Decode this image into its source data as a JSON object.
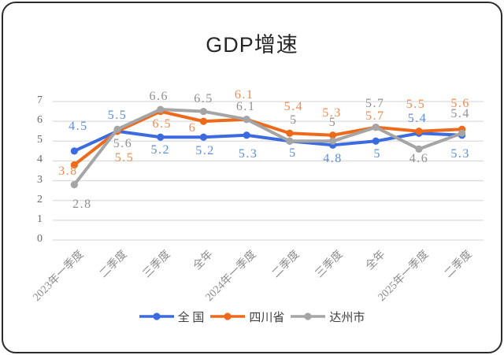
{
  "title": "GDP增速",
  "colors": {
    "national_line": "#3c6be0",
    "national_label": "#5c8fd8",
    "sichuan_line": "#ee6a1b",
    "sichuan_label": "#f08b52",
    "dazhou_line": "#a5a5a5",
    "dazhou_label": "#909090",
    "gridline": "#dcdcdc",
    "y_axis_text": "#6b6b6b",
    "x_axis_text": "#8c8c8c",
    "title_text": "#262626",
    "legend_text": "#3f3f3f",
    "frame_border": "#2b2b2b"
  },
  "chart_data": {
    "type": "line",
    "title": "GDP增速",
    "xlabel": "",
    "ylabel": "",
    "ylim": [
      0,
      7
    ],
    "ytick_step": 1,
    "grid": true,
    "legend_position": "bottom",
    "categories": [
      "2023年一季度",
      "二季度",
      "三季度",
      "全年",
      "2024年一季度",
      "二季度",
      "三季度",
      "全年",
      "2025年一季度",
      "二季度"
    ],
    "series": [
      {
        "name": "全 国",
        "key": "national",
        "color": "#3c6be0",
        "label_color": "#5c8fd8",
        "values": [
          4.5,
          5.5,
          5.2,
          5.2,
          5.3,
          5,
          4.8,
          5,
          5.4,
          5.3
        ],
        "label_offsets": [
          [
            5,
            -31
          ],
          [
            0,
            -20
          ],
          [
            0,
            17
          ],
          [
            2,
            18
          ],
          [
            2,
            24
          ],
          [
            4,
            16
          ],
          [
            0,
            18
          ],
          [
            2,
            17
          ],
          [
            -2,
            -18
          ],
          [
            -2,
            24
          ]
        ]
      },
      {
        "name": "四川省",
        "key": "sichuan",
        "color": "#ee6a1b",
        "label_color": "#f08b52",
        "values": [
          3.8,
          5.5,
          6.5,
          6,
          6.1,
          5.4,
          5.3,
          5.7,
          5.5,
          5.6
        ],
        "label_offsets": [
          [
            -8,
            9
          ],
          [
            9,
            34
          ],
          [
            2,
            16
          ],
          [
            -14,
            9
          ],
          [
            -3,
            -31
          ],
          [
            5,
            -33
          ],
          [
            -1,
            -28
          ],
          [
            -1,
            -14
          ],
          [
            -4,
            -34
          ],
          [
            -2,
            -32
          ]
        ]
      },
      {
        "name": "达州市",
        "key": "dazhou",
        "color": "#a5a5a5",
        "label_color": "#909090",
        "values": [
          2.8,
          5.6,
          6.6,
          6.5,
          6.1,
          5,
          5,
          5.7,
          4.6,
          5.4
        ],
        "label_offsets": [
          [
            10,
            25
          ],
          [
            7,
            19
          ],
          [
            -2,
            -16
          ],
          [
            0,
            -16
          ],
          [
            -1,
            -16
          ],
          [
            5,
            -26
          ],
          [
            0,
            -23
          ],
          [
            -1,
            -30
          ],
          [
            0,
            13
          ],
          [
            -2,
            -24
          ]
        ]
      }
    ]
  }
}
